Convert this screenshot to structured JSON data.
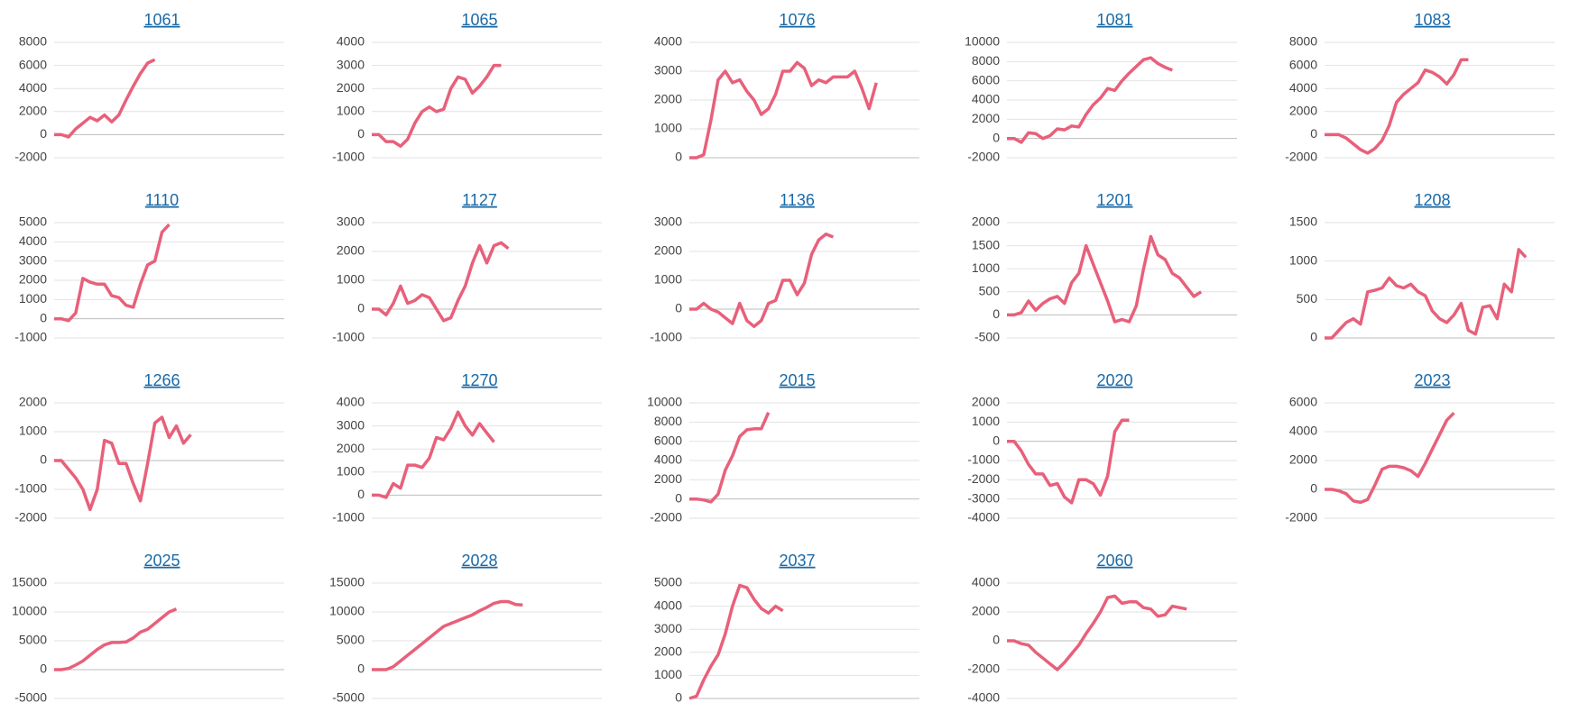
{
  "chart_data": [
    {
      "type": "line",
      "title": "1061",
      "color": "#e8607a",
      "grid": true,
      "ylim": [
        -2000,
        8000
      ],
      "yticks": [
        -2000,
        0,
        2000,
        4000,
        6000,
        8000
      ],
      "values": [
        0,
        0,
        -200,
        500,
        1000,
        1500,
        1200,
        1700,
        1100,
        1700,
        3000,
        4200,
        5300,
        6200,
        6500
      ]
    },
    {
      "type": "line",
      "title": "1065",
      "color": "#e8607a",
      "grid": true,
      "ylim": [
        -1000,
        4000
      ],
      "yticks": [
        -1000,
        0,
        1000,
        2000,
        3000,
        4000
      ],
      "values": [
        0,
        0,
        -300,
        -300,
        -500,
        -200,
        500,
        1000,
        1200,
        1000,
        1100,
        2000,
        2500,
        2400,
        1800,
        2100,
        2500,
        3000,
        3000
      ]
    },
    {
      "type": "line",
      "title": "1076",
      "color": "#e8607a",
      "grid": true,
      "ylim": [
        0,
        4000
      ],
      "yticks": [
        0,
        1000,
        2000,
        3000,
        4000
      ],
      "values": [
        0,
        0,
        100,
        1300,
        2700,
        3000,
        2600,
        2700,
        2300,
        2000,
        1500,
        1700,
        2200,
        3000,
        3000,
        3300,
        3100,
        2500,
        2700,
        2600,
        2800,
        2800,
        2800,
        3000,
        2400,
        1700,
        2600
      ]
    },
    {
      "type": "line",
      "title": "1081",
      "color": "#e8607a",
      "grid": true,
      "ylim": [
        -2000,
        10000
      ],
      "yticks": [
        -2000,
        0,
        2000,
        4000,
        6000,
        8000,
        10000
      ],
      "values": [
        0,
        0,
        -400,
        600,
        500,
        0,
        300,
        1000,
        900,
        1300,
        1200,
        2500,
        3500,
        4200,
        5200,
        5000,
        6000,
        6800,
        7500,
        8200,
        8400,
        7800,
        7400,
        7100
      ]
    },
    {
      "type": "line",
      "title": "1083",
      "color": "#e8607a",
      "grid": true,
      "ylim": [
        -2000,
        8000
      ],
      "yticks": [
        -2000,
        0,
        2000,
        4000,
        6000,
        8000
      ],
      "values": [
        0,
        0,
        0,
        -300,
        -800,
        -1300,
        -1600,
        -1200,
        -500,
        800,
        2800,
        3500,
        4000,
        4500,
        5600,
        5400,
        5000,
        4400,
        5200,
        6500,
        6500
      ]
    },
    {
      "type": "line",
      "title": "1110",
      "color": "#e8607a",
      "grid": true,
      "ylim": [
        -1000,
        5000
      ],
      "yticks": [
        -1000,
        0,
        1000,
        2000,
        3000,
        4000,
        5000
      ],
      "values": [
        0,
        0,
        -100,
        300,
        2100,
        1900,
        1800,
        1800,
        1200,
        1100,
        700,
        600,
        1800,
        2800,
        3000,
        4500,
        4900
      ]
    },
    {
      "type": "line",
      "title": "1127",
      "color": "#e8607a",
      "grid": true,
      "ylim": [
        -1000,
        3000
      ],
      "yticks": [
        -1000,
        0,
        1000,
        2000,
        3000
      ],
      "values": [
        0,
        0,
        -200,
        200,
        800,
        200,
        300,
        500,
        400,
        0,
        -400,
        -300,
        300,
        800,
        1600,
        2200,
        1600,
        2200,
        2300,
        2100
      ]
    },
    {
      "type": "line",
      "title": "1136",
      "color": "#e8607a",
      "grid": true,
      "ylim": [
        -1000,
        3000
      ],
      "yticks": [
        -1000,
        0,
        1000,
        2000,
        3000
      ],
      "values": [
        0,
        0,
        200,
        0,
        -100,
        -300,
        -500,
        200,
        -400,
        -600,
        -400,
        200,
        300,
        1000,
        1000,
        500,
        900,
        1900,
        2400,
        2600,
        2500
      ]
    },
    {
      "type": "line",
      "title": "1201",
      "color": "#e8607a",
      "grid": true,
      "ylim": [
        -500,
        2000
      ],
      "yticks": [
        -500,
        0,
        500,
        1000,
        1500,
        2000
      ],
      "values": [
        0,
        0,
        50,
        300,
        100,
        250,
        350,
        400,
        250,
        700,
        900,
        1500,
        1100,
        700,
        300,
        -150,
        -100,
        -150,
        200,
        1000,
        1700,
        1300,
        1200,
        900,
        800,
        600,
        400,
        500
      ]
    },
    {
      "type": "line",
      "title": "1208",
      "color": "#e8607a",
      "grid": true,
      "ylim": [
        0,
        1500
      ],
      "yticks": [
        0,
        500,
        1000,
        1500
      ],
      "values": [
        0,
        0,
        100,
        200,
        250,
        180,
        600,
        620,
        650,
        780,
        680,
        650,
        700,
        600,
        550,
        350,
        250,
        200,
        300,
        450,
        100,
        50,
        400,
        420,
        250,
        700,
        600,
        1150,
        1050
      ]
    },
    {
      "type": "line",
      "title": "1266",
      "color": "#e8607a",
      "grid": true,
      "ylim": [
        -2000,
        2000
      ],
      "yticks": [
        -2000,
        -1000,
        0,
        1000,
        2000
      ],
      "values": [
        0,
        0,
        -300,
        -600,
        -1000,
        -1700,
        -1000,
        700,
        600,
        -100,
        -100,
        -800,
        -1400,
        -100,
        1300,
        1500,
        800,
        1200,
        600,
        900
      ]
    },
    {
      "type": "line",
      "title": "1270",
      "color": "#e8607a",
      "grid": true,
      "ylim": [
        -1000,
        4000
      ],
      "yticks": [
        -1000,
        0,
        1000,
        2000,
        3000,
        4000
      ],
      "values": [
        0,
        0,
        -100,
        500,
        300,
        1300,
        1300,
        1200,
        1600,
        2500,
        2400,
        2900,
        3600,
        3000,
        2600,
        3100,
        2700,
        2300
      ]
    },
    {
      "type": "line",
      "title": "2015",
      "color": "#e8607a",
      "grid": true,
      "ylim": [
        -2000,
        10000
      ],
      "yticks": [
        -2000,
        0,
        2000,
        4000,
        6000,
        8000,
        10000
      ],
      "values": [
        0,
        0,
        -100,
        -300,
        500,
        3000,
        4500,
        6500,
        7200,
        7300,
        7300,
        9000
      ]
    },
    {
      "type": "line",
      "title": "2020",
      "color": "#e8607a",
      "grid": true,
      "ylim": [
        -4000,
        2000
      ],
      "yticks": [
        -4000,
        -3000,
        -2000,
        -1000,
        0,
        1000,
        2000
      ],
      "values": [
        0,
        0,
        -500,
        -1200,
        -1700,
        -1700,
        -2300,
        -2200,
        -2900,
        -3200,
        -2000,
        -2000,
        -2200,
        -2800,
        -1800,
        500,
        1100,
        1100
      ]
    },
    {
      "type": "line",
      "title": "2023",
      "color": "#e8607a",
      "grid": true,
      "ylim": [
        -2000,
        6000
      ],
      "yticks": [
        -2000,
        0,
        2000,
        4000,
        6000
      ],
      "values": [
        0,
        0,
        -100,
        -300,
        -800,
        -900,
        -700,
        300,
        1400,
        1600,
        1600,
        1500,
        1300,
        900,
        1800,
        2800,
        3800,
        4800,
        5300
      ]
    },
    {
      "type": "line",
      "title": "2025",
      "color": "#e8607a",
      "grid": true,
      "ylim": [
        -5000,
        15000
      ],
      "yticks": [
        -5000,
        0,
        5000,
        10000,
        15000
      ],
      "values": [
        0,
        0,
        200,
        800,
        1500,
        2500,
        3500,
        4300,
        4700,
        4700,
        4800,
        5500,
        6500,
        7000,
        8000,
        9000,
        10000,
        10500
      ]
    },
    {
      "type": "line",
      "title": "2028",
      "color": "#e8607a",
      "grid": true,
      "ylim": [
        -5000,
        15000
      ],
      "yticks": [
        -5000,
        0,
        5000,
        10000,
        15000
      ],
      "values": [
        0,
        0,
        0,
        500,
        1500,
        2500,
        3500,
        4500,
        5500,
        6500,
        7500,
        8000,
        8500,
        9000,
        9500,
        10200,
        10800,
        11500,
        11800,
        11800,
        11300,
        11200
      ]
    },
    {
      "type": "line",
      "title": "2037",
      "color": "#e8607a",
      "grid": true,
      "ylim": [
        0,
        5000
      ],
      "yticks": [
        0,
        1000,
        2000,
        3000,
        4000,
        5000
      ],
      "values": [
        0,
        100,
        800,
        1400,
        1900,
        2800,
        4000,
        4900,
        4800,
        4300,
        3900,
        3700,
        4000,
        3800
      ]
    },
    {
      "type": "line",
      "title": "2060",
      "color": "#e8607a",
      "grid": true,
      "ylim": [
        -4000,
        4000
      ],
      "yticks": [
        -4000,
        -2000,
        0,
        2000,
        4000
      ],
      "values": [
        0,
        0,
        -200,
        -300,
        -800,
        -1200,
        -1600,
        -2000,
        -1500,
        -900,
        -300,
        500,
        1200,
        2000,
        3000,
        3100,
        2600,
        2700,
        2700,
        2300,
        2200,
        1700,
        1800,
        2400,
        2300,
        2200
      ]
    }
  ]
}
